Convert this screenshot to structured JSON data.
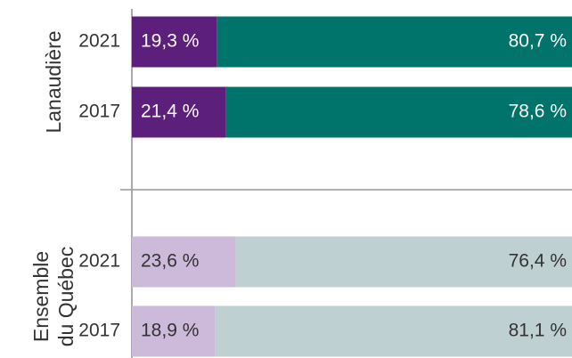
{
  "chart_data": {
    "type": "bar",
    "orientation": "horizontal",
    "stacked": true,
    "xlim": [
      0,
      100
    ],
    "groups": [
      {
        "label_lines": [
          "Lanaudière"
        ],
        "categories": [
          "2021",
          "2017"
        ],
        "series": [
          {
            "color": "#5c1f7b",
            "values": [
              19.3,
              21.4
            ],
            "value_labels": [
              "19,3 %",
              "21,4 %"
            ]
          },
          {
            "color": "#00736b",
            "values": [
              80.7,
              78.6
            ],
            "value_labels": [
              "80,7 %",
              "78,6 %"
            ]
          }
        ]
      },
      {
        "label_lines": [
          "Ensemble",
          "du Québec"
        ],
        "categories": [
          "2021",
          "2017"
        ],
        "series": [
          {
            "color": "#cdb9d9",
            "values": [
              23.6,
              18.9
            ],
            "value_labels": [
              "23,6 %",
              "18,9 %"
            ]
          },
          {
            "color": "#bfd0d2",
            "values": [
              76.4,
              81.1
            ],
            "value_labels": [
              "76,4 %",
              "81,1 %"
            ]
          }
        ]
      }
    ]
  }
}
